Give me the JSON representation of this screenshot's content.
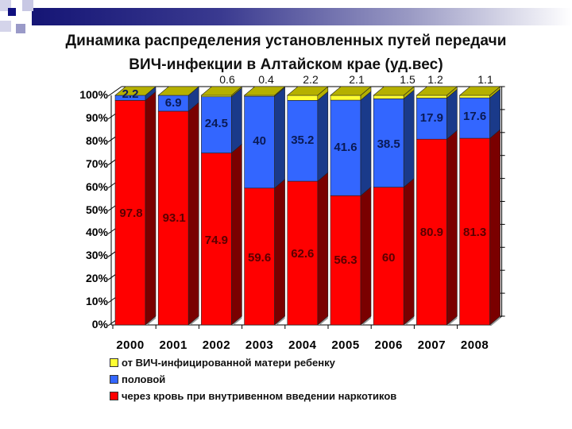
{
  "slide": {
    "title_line1": "Динамика распределения установленных путей передачи",
    "title_line2": "ВИЧ-инфекции в Алтайском крае (уд.вес)"
  },
  "colors": {
    "red": "#ff0000",
    "red_side": "#7a0000",
    "blue": "#3366ff",
    "blue_side": "#1a3a8a",
    "yellow": "#ffff33",
    "yellow_top": "#b5b000",
    "header_bar": "#1a1a80"
  },
  "axis": {
    "y_ticks": [
      "0%",
      "10%",
      "20%",
      "30%",
      "40%",
      "50%",
      "60%",
      "70%",
      "80%",
      "90%",
      "100%"
    ]
  },
  "legend": [
    {
      "label": "от ВИЧ-инфицированной матери ребенку",
      "color": "#ffff33"
    },
    {
      "label": "половой",
      "color": "#3366ff"
    },
    {
      "label": "через кровь при внутривенном введении наркотиков",
      "color": "#ff0000"
    }
  ],
  "chart_data": {
    "type": "bar",
    "stacked": true,
    "percent_stacked": true,
    "title": "Динамика распределения установленных путей передачи ВИЧ-инфекции в Алтайском крае (уд.вес)",
    "xlabel": "",
    "ylabel": "",
    "ylim": [
      0,
      100
    ],
    "categories": [
      "2000",
      "2001",
      "2002",
      "2003",
      "2004",
      "2005",
      "2006",
      "2007",
      "2008"
    ],
    "series": [
      {
        "name": "через кровь при внутривенном введении наркотиков",
        "color": "#ff0000",
        "values": [
          97.8,
          93.1,
          74.9,
          59.6,
          62.6,
          56.3,
          60,
          80.9,
          81.3
        ]
      },
      {
        "name": "половой",
        "color": "#3366ff",
        "values": [
          2.2,
          6.9,
          24.5,
          40,
          35.2,
          41.6,
          38.5,
          17.9,
          17.6
        ]
      },
      {
        "name": "от ВИЧ-инфицированной матери ребенку",
        "color": "#ffff33",
        "values": [
          null,
          null,
          0.6,
          0.4,
          2.2,
          2.1,
          1.5,
          1.2,
          1.1
        ]
      }
    ],
    "top_labels": [
      "",
      "",
      "0.6",
      "0.4",
      "2.2",
      "2.1",
      "1.5",
      "1.2",
      "1.1"
    ],
    "grid": false,
    "legend_position": "bottom-left",
    "three_d": true
  }
}
